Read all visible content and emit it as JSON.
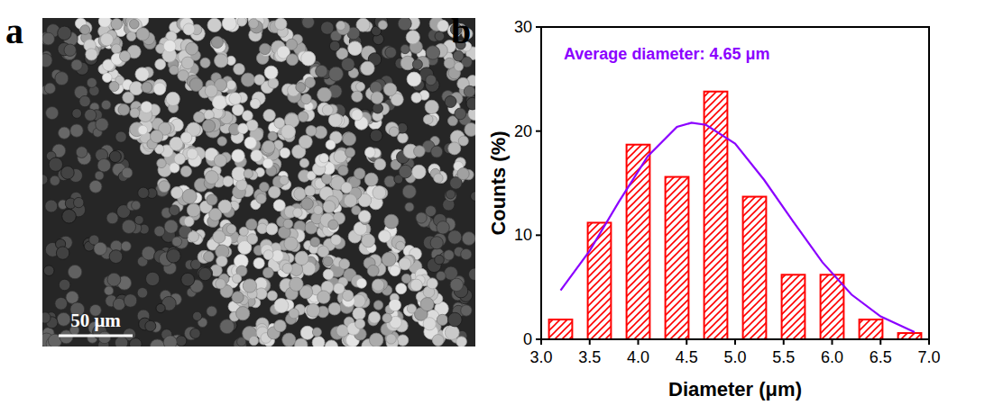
{
  "figure": {
    "panel_labels": [
      "a",
      "b"
    ],
    "scale_bar": "50 μm"
  },
  "chart_data": {
    "type": "histogram",
    "x_label": "Diameter (μm)",
    "y_label": "Counts (%)",
    "annotations": [
      "Average diameter: 4.65 μm"
    ],
    "bins": [
      3.0,
      3.4,
      3.8,
      4.2,
      4.6,
      5.0,
      5.4,
      5.8,
      6.2,
      6.6,
      7.0
    ],
    "series": [
      {
        "type": "bar",
        "color": "#ff0000",
        "values": [
          1.9,
          11.2,
          18.7,
          15.6,
          23.8,
          13.7,
          6.2,
          6.2,
          1.9,
          0.6
        ]
      },
      {
        "type": "line",
        "color": "#8b00ff",
        "x": [
          3.2,
          3.5,
          3.8,
          4.1,
          4.4,
          4.55,
          4.7,
          5.0,
          5.3,
          5.6,
          5.9,
          6.2,
          6.5,
          6.85
        ],
        "values": [
          4.7,
          8.5,
          13.2,
          17.6,
          20.4,
          20.8,
          20.6,
          18.8,
          15.3,
          11.3,
          7.4,
          4.3,
          2.2,
          0.7
        ]
      }
    ],
    "xlim": [
      3.0,
      7.0
    ],
    "xticks": [
      {
        "value": 3,
        "label": "3.0"
      },
      {
        "value": 3.5,
        "label": "3.5"
      },
      {
        "value": 4,
        "label": "4.0"
      },
      {
        "value": 4.5,
        "label": "4.5"
      },
      {
        "value": 5,
        "label": "5.0"
      },
      {
        "value": 5.5,
        "label": "5.5"
      },
      {
        "value": 6,
        "label": "6.0"
      },
      {
        "value": 6.5,
        "label": "6.5"
      },
      {
        "value": 7,
        "label": "7.0"
      }
    ],
    "ylim": [
      0,
      30
    ],
    "yticks": [
      0,
      10,
      20,
      30
    ],
    "grid": false
  }
}
